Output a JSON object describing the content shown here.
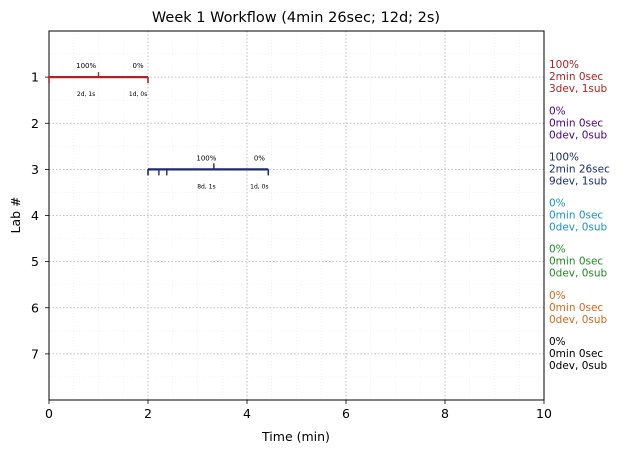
{
  "chart_data": {
    "type": "timeline",
    "title": "Week 1 Workflow (4min 26sec; 12d; 2s)",
    "xlabel": "Time (min)",
    "ylabel": "Lab #",
    "xlim": [
      0,
      10
    ],
    "ylim": [
      0,
      8
    ],
    "x_ticks": [
      "0",
      "2",
      "4",
      "6",
      "8",
      "10"
    ],
    "y_ticks": [
      "1",
      "2",
      "3",
      "4",
      "5",
      "6",
      "7"
    ],
    "grid": true,
    "segments": [
      {
        "lab": 1,
        "start": 0.0,
        "end": 2.0,
        "color": "#b22222",
        "inner_ticks": [
          1.0
        ],
        "labels": [
          {
            "x": 0.75,
            "above": "100%",
            "below": "2d, 1s"
          },
          {
            "x": 1.8,
            "above": "0%",
            "below": "1d, 0s"
          }
        ]
      },
      {
        "lab": 3,
        "start": 2.0,
        "end": 4.43,
        "color": "#1f2a6e",
        "inner_ticks": [
          2.22,
          2.38,
          3.33
        ],
        "labels": [
          {
            "x": 3.18,
            "above": "100%",
            "below": "8d, 1s"
          },
          {
            "x": 4.25,
            "above": "0%",
            "below": "1d, 0s"
          }
        ]
      }
    ],
    "side_annotations": [
      {
        "lab": 1,
        "color": "#b22222",
        "lines": [
          "100%",
          "2min 0sec",
          "3dev, 1sub"
        ]
      },
      {
        "lab": 2,
        "color": "#4b0082",
        "lines": [
          "0%",
          "0min 0sec",
          "0dev, 0sub"
        ]
      },
      {
        "lab": 3,
        "color": "#1f2a6e",
        "lines": [
          "100%",
          "2min 26sec",
          "9dev, 1sub"
        ]
      },
      {
        "lab": 4,
        "color": "#1e90c8",
        "lines": [
          "0%",
          "0min 0sec",
          "0dev, 0sub"
        ]
      },
      {
        "lab": 5,
        "color": "#228b22",
        "lines": [
          "0%",
          "0min 0sec",
          "0dev, 0sub"
        ]
      },
      {
        "lab": 6,
        "color": "#d2691e",
        "lines": [
          "0%",
          "0min 0sec",
          "0dev, 0sub"
        ]
      },
      {
        "lab": 7,
        "color": "#000000",
        "lines": [
          "0%",
          "0min 0sec",
          "0dev, 0sub"
        ]
      }
    ]
  }
}
